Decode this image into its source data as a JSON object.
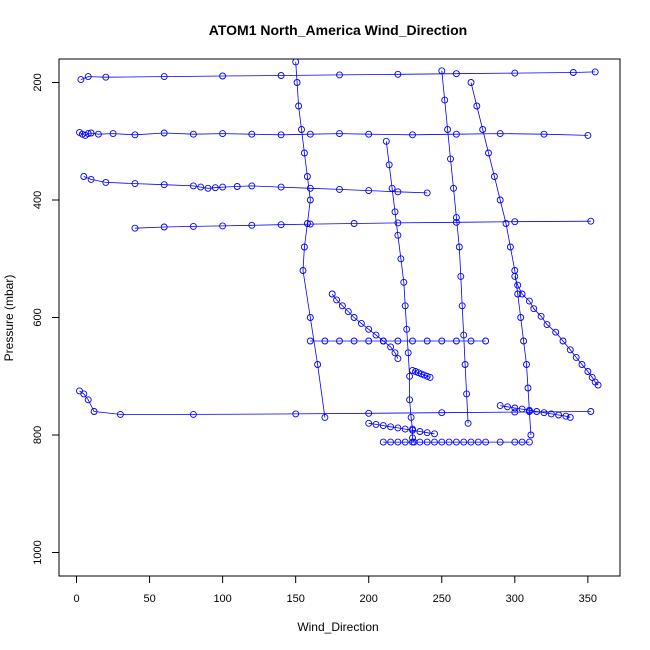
{
  "chart_data": {
    "type": "scatter",
    "title": "ATOM1 North_America Wind_Direction",
    "xlabel": "Wind_Direction",
    "ylabel": "Pressure (mbar)",
    "xlim": [
      -12,
      372
    ],
    "ylim": [
      1040,
      160
    ],
    "y_inverted": true,
    "grid": false,
    "x_ticks": [
      0,
      50,
      100,
      150,
      200,
      250,
      300,
      350
    ],
    "y_ticks": [
      200,
      400,
      600,
      800,
      1000
    ],
    "series_color": "#0000ff",
    "marker": "open-circle",
    "connected_lines": true,
    "series": [
      {
        "x": [
          300,
          302,
          305,
          310,
          313,
          318,
          322,
          328,
          333,
          338,
          342,
          346,
          350,
          353,
          355,
          357
        ],
        "y": [
          530,
          545,
          560,
          572,
          585,
          598,
          612,
          625,
          640,
          655,
          668,
          680,
          692,
          702,
          710,
          715
        ]
      },
      {
        "x": [
          212,
          214,
          216,
          218,
          220,
          222,
          224,
          225,
          226,
          227,
          228,
          228,
          229,
          230,
          230,
          231
        ],
        "y": [
          300,
          340,
          380,
          420,
          460,
          500,
          540,
          580,
          620,
          660,
          700,
          740,
          770,
          790,
          805,
          812
        ]
      },
      {
        "x": [
          270,
          274,
          278,
          282,
          286,
          290,
          294,
          297,
          300,
          302,
          304,
          306,
          308,
          309,
          310,
          311
        ],
        "y": [
          200,
          240,
          280,
          320,
          360,
          400,
          440,
          480,
          520,
          560,
          600,
          640,
          680,
          720,
          760,
          800
        ]
      },
      {
        "x": [
          150,
          151,
          152,
          154,
          156,
          158,
          160,
          158,
          156,
          155,
          160,
          165,
          170
        ],
        "y": [
          165,
          200,
          240,
          280,
          320,
          360,
          400,
          440,
          480,
          520,
          600,
          680,
          770
        ]
      },
      {
        "x": [
          160,
          170,
          180,
          190,
          200,
          210,
          220,
          230,
          240,
          250,
          260,
          270,
          280
        ],
        "y": [
          640,
          640,
          640,
          640,
          640,
          640,
          640,
          640,
          640,
          640,
          640,
          640,
          640
        ]
      },
      {
        "x": [
          210,
          215,
          220,
          225,
          230,
          235,
          240,
          245,
          250,
          255,
          260,
          265,
          270,
          275,
          280,
          290,
          300,
          305,
          310
        ],
        "y": [
          812,
          812,
          812,
          812,
          812,
          812,
          812,
          812,
          812,
          812,
          812,
          812,
          812,
          812,
          812,
          812,
          812,
          812,
          812
        ]
      },
      {
        "x": [
          2,
          4,
          6,
          8,
          10,
          15,
          25,
          40,
          60,
          80,
          100,
          120,
          140,
          160,
          180,
          200,
          230,
          260,
          290,
          320,
          350
        ],
        "y": [
          285,
          288,
          290,
          287,
          286,
          288,
          287,
          289,
          286,
          288,
          287,
          288,
          289,
          288,
          287,
          288,
          289,
          288,
          287,
          288,
          290
        ]
      },
      {
        "x": [
          5,
          10,
          20,
          40,
          60,
          80,
          85,
          90,
          95,
          100,
          110,
          120,
          140,
          160,
          180,
          200,
          220,
          240
        ],
        "y": [
          360,
          365,
          370,
          372,
          374,
          376,
          378,
          380,
          379,
          378,
          377,
          376,
          378,
          380,
          382,
          384,
          386,
          388
        ]
      },
      {
        "x": [
          2,
          5,
          8,
          12,
          30,
          80,
          150,
          200,
          250,
          300,
          352
        ],
        "y": [
          725,
          730,
          740,
          760,
          765,
          765,
          764,
          763,
          762,
          761,
          760
        ]
      },
      {
        "x": [
          175,
          178,
          182,
          186,
          190,
          195,
          200,
          205,
          210,
          215,
          218,
          220
        ],
        "y": [
          560,
          570,
          580,
          590,
          600,
          610,
          620,
          630,
          640,
          650,
          660,
          670
        ]
      },
      {
        "x": [
          250,
          252,
          254,
          256,
          258,
          260,
          262,
          263,
          264,
          265,
          266,
          267,
          268
        ],
        "y": [
          180,
          230,
          280,
          330,
          380,
          430,
          480,
          530,
          580,
          630,
          680,
          730,
          780
        ]
      },
      {
        "x": [
          290,
          295,
          300,
          305,
          310,
          315,
          320,
          325,
          330,
          335,
          338
        ],
        "y": [
          750,
          752,
          754,
          756,
          758,
          760,
          762,
          764,
          766,
          768,
          770
        ]
      },
      {
        "x": [
          3,
          8,
          20,
          60,
          100,
          140,
          180,
          220,
          260,
          300,
          340,
          355
        ],
        "y": [
          195,
          190,
          191,
          190,
          189,
          188,
          187,
          186,
          185,
          184,
          183,
          182
        ]
      },
      {
        "x": [
          40,
          60,
          80,
          100,
          120,
          140,
          160,
          190,
          220,
          260,
          300,
          352
        ],
        "y": [
          448,
          446,
          445,
          444,
          443,
          442,
          441,
          440,
          439,
          438,
          437,
          436
        ]
      },
      {
        "x": [
          230,
          232,
          234,
          236,
          238,
          240,
          242
        ],
        "y": [
          690,
          692,
          694,
          696,
          698,
          700,
          702
        ]
      },
      {
        "x": [
          200,
          205,
          210,
          215,
          220,
          225,
          230,
          235,
          240,
          245
        ],
        "y": [
          780,
          782,
          784,
          786,
          788,
          790,
          792,
          794,
          796,
          798
        ]
      }
    ]
  }
}
